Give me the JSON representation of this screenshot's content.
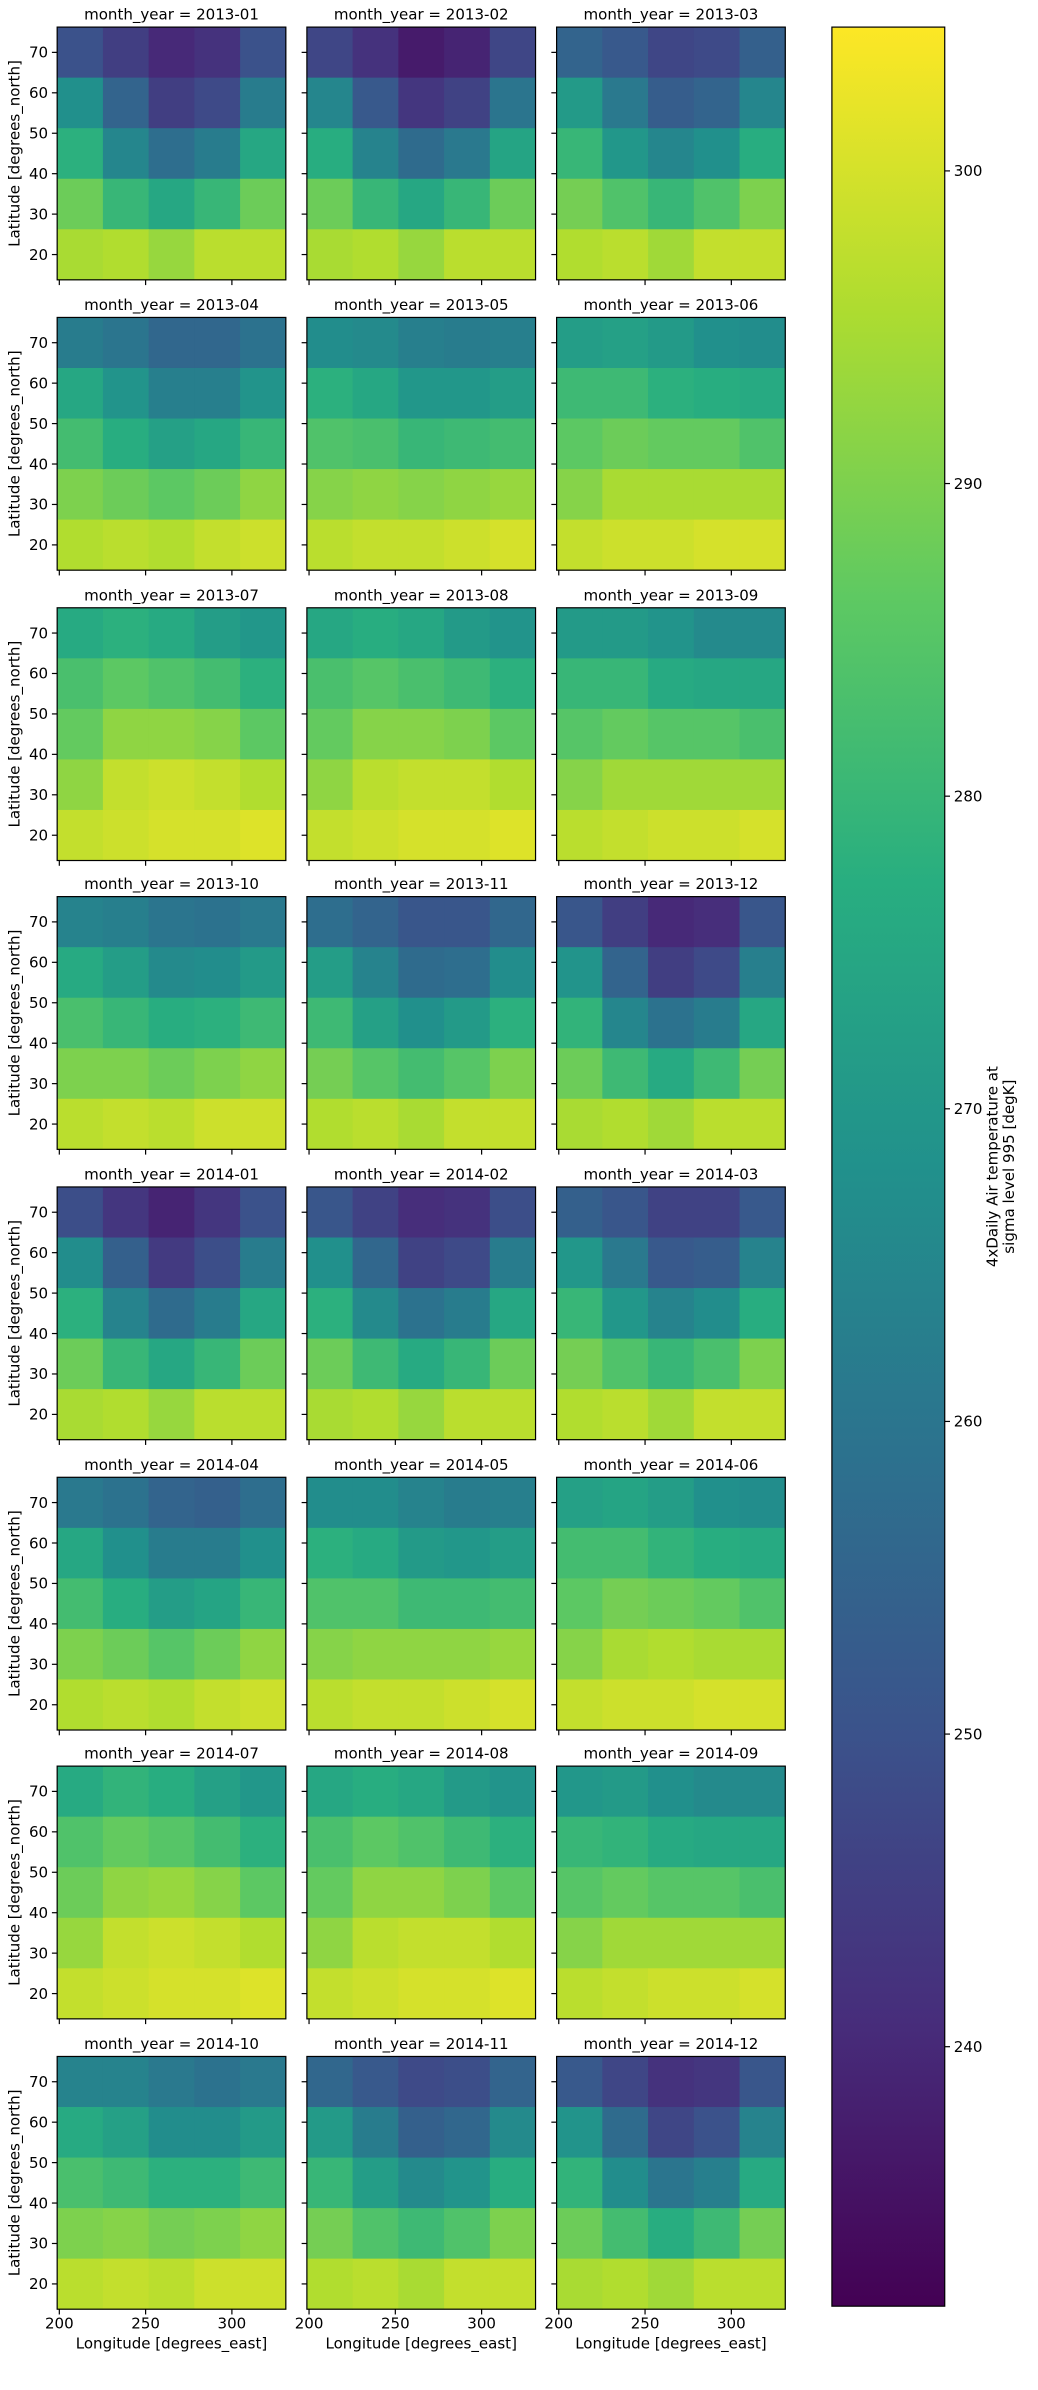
{
  "chart_data": {
    "type": "heatmap",
    "xlabel": "Longitude [degrees_east]",
    "ylabel": "Latitude [degrees_north]",
    "xlim": [
      198.75,
      331.25
    ],
    "ylim": [
      13.75,
      76.25
    ],
    "xticks": [
      200,
      250,
      300
    ],
    "yticks": [
      20,
      30,
      40,
      50,
      60,
      70
    ],
    "clim": [
      231.7,
      304.6
    ],
    "cticks": [
      240,
      250,
      260,
      270,
      280,
      290,
      300
    ],
    "colorbar_label": [
      "4xDaily Air temperature at",
      "sigma level 995 [degK]"
    ],
    "panels": [
      {
        "title": "month_year = 2013-01",
        "values": [
          [
            250,
            245,
            240,
            242,
            250
          ],
          [
            268,
            255,
            245,
            248,
            262
          ],
          [
            278,
            265,
            258,
            262,
            275
          ],
          [
            288,
            280,
            275,
            280,
            288
          ],
          [
            295,
            296,
            293,
            297,
            297
          ]
        ]
      },
      {
        "title": "month_year = 2013-02",
        "values": [
          [
            247,
            242,
            237,
            239,
            247
          ],
          [
            265,
            252,
            243,
            246,
            260
          ],
          [
            277,
            264,
            257,
            261,
            274
          ],
          [
            288,
            280,
            275,
            280,
            288
          ],
          [
            295,
            296,
            293,
            297,
            297
          ]
        ]
      },
      {
        "title": "month_year = 2013-03",
        "values": [
          [
            255,
            252,
            247,
            248,
            254
          ],
          [
            271,
            261,
            253,
            255,
            265
          ],
          [
            280,
            270,
            265,
            268,
            277
          ],
          [
            289,
            284,
            280,
            284,
            290
          ],
          [
            296,
            297,
            294,
            298,
            298
          ]
        ]
      },
      {
        "title": "month_year = 2013-04",
        "values": [
          [
            262,
            260,
            256,
            256,
            259
          ],
          [
            275,
            269,
            263,
            263,
            269
          ],
          [
            282,
            277,
            273,
            275,
            280
          ],
          [
            290,
            288,
            286,
            288,
            292
          ],
          [
            296,
            297,
            296,
            298,
            299
          ]
        ]
      },
      {
        "title": "month_year = 2013-05",
        "values": [
          [
            267,
            266,
            263,
            262,
            263
          ],
          [
            278,
            275,
            270,
            270,
            272
          ],
          [
            284,
            283,
            280,
            281,
            282
          ],
          [
            291,
            292,
            291,
            292,
            293
          ],
          [
            297,
            298,
            298,
            299,
            300
          ]
        ]
      },
      {
        "title": "month_year = 2013-06",
        "values": [
          [
            272,
            273,
            271,
            268,
            267
          ],
          [
            281,
            281,
            278,
            277,
            276
          ],
          [
            286,
            288,
            287,
            287,
            284
          ],
          [
            291,
            295,
            295,
            295,
            295
          ],
          [
            298,
            299,
            299,
            300,
            300
          ]
        ]
      },
      {
        "title": "month_year = 2013-07",
        "values": [
          [
            276,
            278,
            276,
            272,
            270
          ],
          [
            283,
            286,
            284,
            282,
            278
          ],
          [
            287,
            292,
            292,
            291,
            286
          ],
          [
            292,
            298,
            299,
            298,
            296
          ],
          [
            298,
            299,
            300,
            300,
            301
          ]
        ]
      },
      {
        "title": "month_year = 2013-08",
        "values": [
          [
            275,
            277,
            275,
            271,
            269
          ],
          [
            283,
            285,
            283,
            281,
            278
          ],
          [
            287,
            291,
            291,
            290,
            286
          ],
          [
            292,
            297,
            298,
            298,
            296
          ],
          [
            298,
            299,
            300,
            300,
            301
          ]
        ]
      },
      {
        "title": "month_year = 2013-09",
        "values": [
          [
            271,
            271,
            269,
            266,
            266
          ],
          [
            280,
            280,
            276,
            275,
            275
          ],
          [
            285,
            287,
            285,
            285,
            283
          ],
          [
            291,
            294,
            294,
            294,
            294
          ],
          [
            297,
            298,
            299,
            299,
            300
          ]
        ]
      },
      {
        "title": "month_year = 2013-10",
        "values": [
          [
            264,
            263,
            260,
            259,
            261
          ],
          [
            276,
            272,
            266,
            267,
            271
          ],
          [
            283,
            280,
            277,
            278,
            281
          ],
          [
            290,
            290,
            288,
            290,
            292
          ],
          [
            297,
            298,
            297,
            299,
            299
          ]
        ]
      },
      {
        "title": "month_year = 2013-11",
        "values": [
          [
            258,
            255,
            251,
            251,
            256
          ],
          [
            272,
            264,
            257,
            258,
            267
          ],
          [
            281,
            273,
            268,
            271,
            278
          ],
          [
            289,
            285,
            282,
            285,
            290
          ],
          [
            296,
            297,
            295,
            298,
            298
          ]
        ]
      },
      {
        "title": "month_year = 2013-12",
        "values": [
          [
            251,
            245,
            240,
            241,
            251
          ],
          [
            269,
            255,
            245,
            248,
            263
          ],
          [
            279,
            265,
            259,
            262,
            275
          ],
          [
            288,
            281,
            276,
            281,
            289
          ],
          [
            295,
            296,
            294,
            297,
            297
          ]
        ]
      },
      {
        "title": "month_year = 2014-01",
        "values": [
          [
            249,
            243,
            239,
            243,
            250
          ],
          [
            267,
            254,
            244,
            249,
            262
          ],
          [
            278,
            264,
            257,
            262,
            275
          ],
          [
            288,
            280,
            275,
            280,
            288
          ],
          [
            295,
            296,
            293,
            297,
            297
          ]
        ]
      },
      {
        "title": "month_year = 2014-02",
        "values": [
          [
            251,
            246,
            241,
            242,
            249
          ],
          [
            268,
            256,
            246,
            248,
            262
          ],
          [
            278,
            266,
            259,
            262,
            275
          ],
          [
            288,
            281,
            276,
            280,
            288
          ],
          [
            295,
            296,
            293,
            297,
            297
          ]
        ]
      },
      {
        "title": "month_year = 2014-03",
        "values": [
          [
            254,
            251,
            246,
            246,
            252
          ],
          [
            270,
            261,
            252,
            253,
            264
          ],
          [
            280,
            270,
            264,
            267,
            277
          ],
          [
            289,
            284,
            280,
            283,
            290
          ],
          [
            296,
            297,
            294,
            298,
            298
          ]
        ]
      },
      {
        "title": "month_year = 2014-04",
        "values": [
          [
            261,
            259,
            255,
            254,
            258
          ],
          [
            275,
            268,
            262,
            262,
            268
          ],
          [
            282,
            277,
            272,
            274,
            280
          ],
          [
            290,
            288,
            285,
            288,
            292
          ],
          [
            296,
            297,
            296,
            298,
            299
          ]
        ]
      },
      {
        "title": "month_year = 2014-05",
        "values": [
          [
            267,
            267,
            264,
            262,
            263
          ],
          [
            278,
            276,
            271,
            270,
            272
          ],
          [
            284,
            284,
            281,
            281,
            282
          ],
          [
            291,
            292,
            292,
            292,
            293
          ],
          [
            297,
            298,
            298,
            299,
            300
          ]
        ]
      },
      {
        "title": "month_year = 2014-06",
        "values": [
          [
            273,
            274,
            272,
            268,
            267
          ],
          [
            282,
            282,
            279,
            277,
            276
          ],
          [
            286,
            289,
            288,
            287,
            284
          ],
          [
            291,
            295,
            296,
            295,
            295
          ],
          [
            298,
            299,
            299,
            300,
            300
          ]
        ]
      },
      {
        "title": "month_year = 2014-07",
        "values": [
          [
            276,
            279,
            277,
            273,
            270
          ],
          [
            284,
            287,
            285,
            282,
            278
          ],
          [
            288,
            292,
            293,
            291,
            286
          ],
          [
            293,
            298,
            299,
            298,
            296
          ],
          [
            298,
            299,
            300,
            300,
            301
          ]
        ]
      },
      {
        "title": "month_year = 2014-08",
        "values": [
          [
            275,
            277,
            275,
            271,
            269
          ],
          [
            283,
            286,
            284,
            281,
            278
          ],
          [
            287,
            292,
            292,
            290,
            286
          ],
          [
            292,
            297,
            298,
            298,
            296
          ],
          [
            298,
            299,
            300,
            300,
            301
          ]
        ]
      },
      {
        "title": "month_year = 2014-09",
        "values": [
          [
            270,
            271,
            268,
            266,
            266
          ],
          [
            280,
            279,
            276,
            275,
            275
          ],
          [
            285,
            287,
            285,
            285,
            283
          ],
          [
            291,
            294,
            294,
            294,
            294
          ],
          [
            297,
            298,
            299,
            299,
            300
          ]
        ]
      },
      {
        "title": "month_year = 2014-10",
        "values": [
          [
            264,
            264,
            261,
            259,
            261
          ],
          [
            276,
            273,
            267,
            267,
            271
          ],
          [
            283,
            281,
            278,
            278,
            281
          ],
          [
            290,
            291,
            289,
            290,
            292
          ],
          [
            297,
            298,
            297,
            299,
            299
          ]
        ]
      },
      {
        "title": "month_year = 2014-11",
        "values": [
          [
            256,
            252,
            248,
            249,
            255
          ],
          [
            271,
            262,
            254,
            256,
            266
          ],
          [
            280,
            272,
            266,
            269,
            277
          ],
          [
            289,
            284,
            281,
            284,
            290
          ],
          [
            296,
            297,
            295,
            298,
            298
          ]
        ]
      },
      {
        "title": "month_year = 2014-12",
        "values": [
          [
            252,
            247,
            242,
            243,
            251
          ],
          [
            269,
            257,
            247,
            250,
            264
          ],
          [
            279,
            267,
            260,
            263,
            276
          ],
          [
            288,
            282,
            277,
            281,
            289
          ],
          [
            295,
            296,
            294,
            297,
            297
          ]
        ]
      }
    ]
  }
}
